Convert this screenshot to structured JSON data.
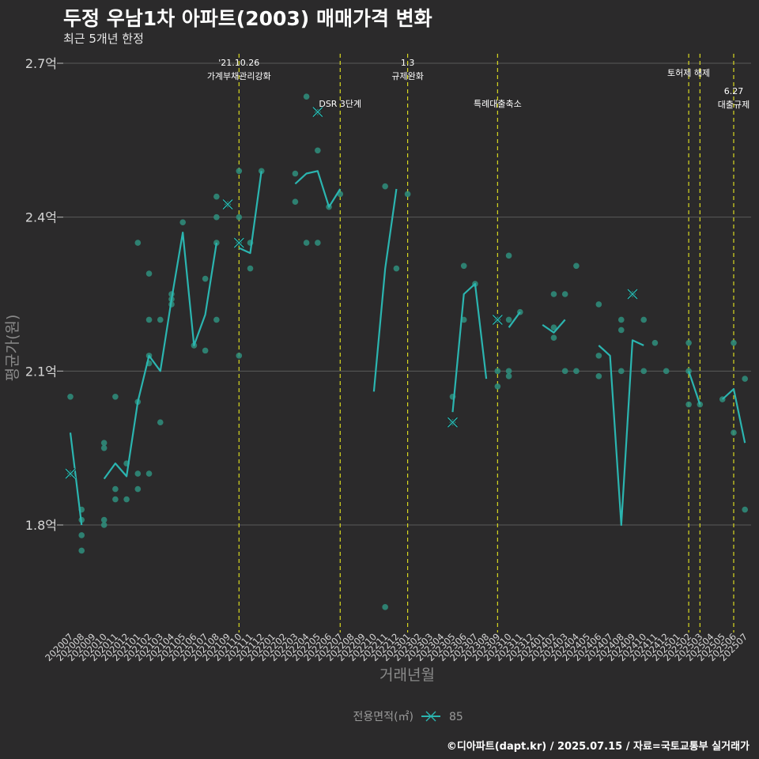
{
  "header": {
    "title": "두정 우남1차 아파트(2003) 매매가격 변화",
    "subtitle": "최근 5개년 한정"
  },
  "footer": {
    "caption": "©디아파트(dapt.kr) / 2025.07.15 / 자료=국토교통부 실거래가"
  },
  "colors": {
    "background": "#2b2a2b",
    "series": "#2bb5b0",
    "points": "#2f8f7e",
    "vline": "#d8d820",
    "grid": "#5a5a5a"
  },
  "chart_data": {
    "type": "line",
    "xlabel": "거래년월",
    "ylabel": "평균가(원)",
    "ylim": [
      1.6,
      2.72
    ],
    "grid": true,
    "legend_position": "bottom",
    "y_ticks": [
      {
        "value": 1.8,
        "label": "1.8억"
      },
      {
        "value": 2.1,
        "label": "2.1억"
      },
      {
        "value": 2.4,
        "label": "2.4억"
      },
      {
        "value": 2.7,
        "label": "2.7억"
      }
    ],
    "x_categories": [
      "202007",
      "202008",
      "202009",
      "202010",
      "202011",
      "202012",
      "202101",
      "202102",
      "202103",
      "202104",
      "202105",
      "202106",
      "202107",
      "202108",
      "202109",
      "202110",
      "202111",
      "202112",
      "202201",
      "202202",
      "202203",
      "202204",
      "202205",
      "202206",
      "202207",
      "202208",
      "202209",
      "202210",
      "202211",
      "202212",
      "202301",
      "202302",
      "202303",
      "202304",
      "202305",
      "202306",
      "202307",
      "202308",
      "202309",
      "202310",
      "202311",
      "202312",
      "202401",
      "202402",
      "202403",
      "202404",
      "202405",
      "202406",
      "202407",
      "202408",
      "202409",
      "202410",
      "202411",
      "202412",
      "202501",
      "202502",
      "202503",
      "202504",
      "202505",
      "202506",
      "202507"
    ],
    "legend": {
      "title": "전용면적(㎡)",
      "label": "85"
    },
    "series": [
      {
        "name": "85",
        "segments": [
          [
            [
              "202007",
              1.98
            ],
            [
              "202008",
              1.8
            ]
          ],
          [
            [
              "202010",
              1.89
            ],
            [
              "202011",
              1.92
            ],
            [
              "202012",
              1.895
            ],
            [
              "202101",
              2.04
            ],
            [
              "202102",
              2.13
            ],
            [
              "202103",
              2.1
            ],
            [
              "202104",
              2.24
            ],
            [
              "202105",
              2.37
            ],
            [
              "202106",
              2.15
            ],
            [
              "202107",
              2.21
            ],
            [
              "202108",
              2.35
            ]
          ],
          [
            [
              "202110",
              2.34
            ],
            [
              "202111",
              2.33
            ],
            [
              "202112",
              2.49
            ]
          ],
          [
            [
              "202203",
              2.465
            ],
            [
              "202204",
              2.485
            ],
            [
              "202205",
              2.49
            ],
            [
              "202206",
              2.42
            ],
            [
              "202207",
              2.455
            ]
          ],
          [
            [
              "202210",
              2.06
            ],
            [
              "202211",
              2.3
            ],
            [
              "202212",
              2.455
            ]
          ],
          [
            [
              "202305",
              2.02
            ],
            [
              "202306",
              2.25
            ],
            [
              "202307",
              2.27
            ],
            [
              "202308",
              2.085
            ]
          ],
          [
            [
              "202310",
              2.185
            ],
            [
              "202311",
              2.215
            ]
          ],
          [
            [
              "202401",
              2.19
            ],
            [
              "202402",
              2.175
            ],
            [
              "202403",
              2.2
            ]
          ],
          [
            [
              "202406",
              2.15
            ],
            [
              "202407",
              2.13
            ],
            [
              "202408",
              1.8
            ],
            [
              "202409",
              2.16
            ],
            [
              "202410",
              2.15
            ]
          ],
          [
            [
              "202502",
              2.1
            ],
            [
              "202503",
              2.035
            ]
          ],
          [
            [
              "202505",
              2.045
            ],
            [
              "202506",
              2.065
            ],
            [
              "202507",
              1.96
            ]
          ]
        ]
      }
    ],
    "points": [
      [
        "202007",
        2.05
      ],
      [
        "202007",
        1.9
      ],
      [
        "202008",
        1.83
      ],
      [
        "202008",
        1.81
      ],
      [
        "202008",
        1.78
      ],
      [
        "202008",
        1.75
      ],
      [
        "202010",
        1.96
      ],
      [
        "202010",
        1.95
      ],
      [
        "202010",
        1.81
      ],
      [
        "202010",
        1.8
      ],
      [
        "202011",
        2.05
      ],
      [
        "202011",
        1.87
      ],
      [
        "202011",
        1.85
      ],
      [
        "202012",
        1.92
      ],
      [
        "202012",
        1.85
      ],
      [
        "202101",
        2.35
      ],
      [
        "202101",
        1.9
      ],
      [
        "202101",
        1.87
      ],
      [
        "202101",
        2.04
      ],
      [
        "202102",
        2.29
      ],
      [
        "202102",
        2.2
      ],
      [
        "202102",
        2.13
      ],
      [
        "202102",
        2.115
      ],
      [
        "202102",
        1.9
      ],
      [
        "202103",
        2.2
      ],
      [
        "202103",
        2.0
      ],
      [
        "202104",
        2.25
      ],
      [
        "202104",
        2.24
      ],
      [
        "202104",
        2.23
      ],
      [
        "202105",
        2.39
      ],
      [
        "202106",
        2.15
      ],
      [
        "202107",
        2.28
      ],
      [
        "202107",
        2.14
      ],
      [
        "202108",
        2.44
      ],
      [
        "202108",
        2.4
      ],
      [
        "202108",
        2.35
      ],
      [
        "202108",
        2.2
      ],
      [
        "202109",
        2.425
      ],
      [
        "202110",
        2.49
      ],
      [
        "202110",
        2.4
      ],
      [
        "202110",
        2.35
      ],
      [
        "202110",
        2.13
      ],
      [
        "202111",
        2.35
      ],
      [
        "202111",
        2.3
      ],
      [
        "202112",
        2.49
      ],
      [
        "202203",
        2.485
      ],
      [
        "202203",
        2.43
      ],
      [
        "202204",
        2.635
      ],
      [
        "202204",
        2.35
      ],
      [
        "202205",
        2.605
      ],
      [
        "202205",
        2.53
      ],
      [
        "202205",
        2.35
      ],
      [
        "202206",
        2.42
      ],
      [
        "202207",
        2.445
      ],
      [
        "202211",
        2.46
      ],
      [
        "202211",
        1.64
      ],
      [
        "202212",
        2.3
      ],
      [
        "202301",
        2.445
      ],
      [
        "202305",
        2.05
      ],
      [
        "202305",
        2.0
      ],
      [
        "202306",
        2.305
      ],
      [
        "202306",
        2.2
      ],
      [
        "202307",
        2.27
      ],
      [
        "202309",
        2.2
      ],
      [
        "202309",
        2.1
      ],
      [
        "202309",
        2.07
      ],
      [
        "202310",
        2.325
      ],
      [
        "202310",
        2.2
      ],
      [
        "202310",
        2.1
      ],
      [
        "202310",
        2.09
      ],
      [
        "202311",
        2.215
      ],
      [
        "202402",
        2.185
      ],
      [
        "202402",
        2.165
      ],
      [
        "202402",
        2.25
      ],
      [
        "202403",
        2.25
      ],
      [
        "202403",
        2.1
      ],
      [
        "202404",
        2.305
      ],
      [
        "202404",
        2.1
      ],
      [
        "202406",
        2.23
      ],
      [
        "202406",
        2.13
      ],
      [
        "202406",
        2.09
      ],
      [
        "202408",
        2.18
      ],
      [
        "202408",
        2.2
      ],
      [
        "202408",
        2.1
      ],
      [
        "202409",
        2.25
      ],
      [
        "202410",
        2.2
      ],
      [
        "202410",
        2.1
      ],
      [
        "202411",
        2.155
      ],
      [
        "202412",
        2.1
      ],
      [
        "202502",
        2.155
      ],
      [
        "202502",
        2.1
      ],
      [
        "202502",
        2.035
      ],
      [
        "202503",
        2.035
      ],
      [
        "202505",
        2.045
      ],
      [
        "202506",
        2.155
      ],
      [
        "202506",
        1.98
      ],
      [
        "202507",
        2.085
      ],
      [
        "202507",
        1.83
      ]
    ],
    "x_markers": [
      [
        "202007",
        1.9
      ],
      [
        "202109",
        2.425
      ],
      [
        "202110",
        2.35
      ],
      [
        "202205",
        2.605
      ],
      [
        "202305",
        2.0
      ],
      [
        "202309",
        2.2
      ],
      [
        "202409",
        2.25
      ]
    ],
    "events": [
      {
        "x": "202110",
        "lines": [
          "'21.10.26",
          "가계부채관리강화"
        ],
        "label_y": 2.695
      },
      {
        "x": "202207",
        "lines": [
          "DSR 3단계"
        ],
        "label_y": 2.615
      },
      {
        "x": "202301",
        "lines": [
          "1.3",
          "규제완화"
        ],
        "label_y": 2.695
      },
      {
        "x": "202309",
        "lines": [
          "특례대출축소"
        ],
        "label_y": 2.615
      },
      {
        "x": "202502",
        "lines": [
          "토허제 해제"
        ],
        "label_y": 2.675
      },
      {
        "x": "202503",
        "lines": [],
        "label_y": 2.6
      },
      {
        "x": "202506",
        "lines": [
          "6.27",
          "대출규제"
        ],
        "label_y": 2.64
      }
    ]
  }
}
